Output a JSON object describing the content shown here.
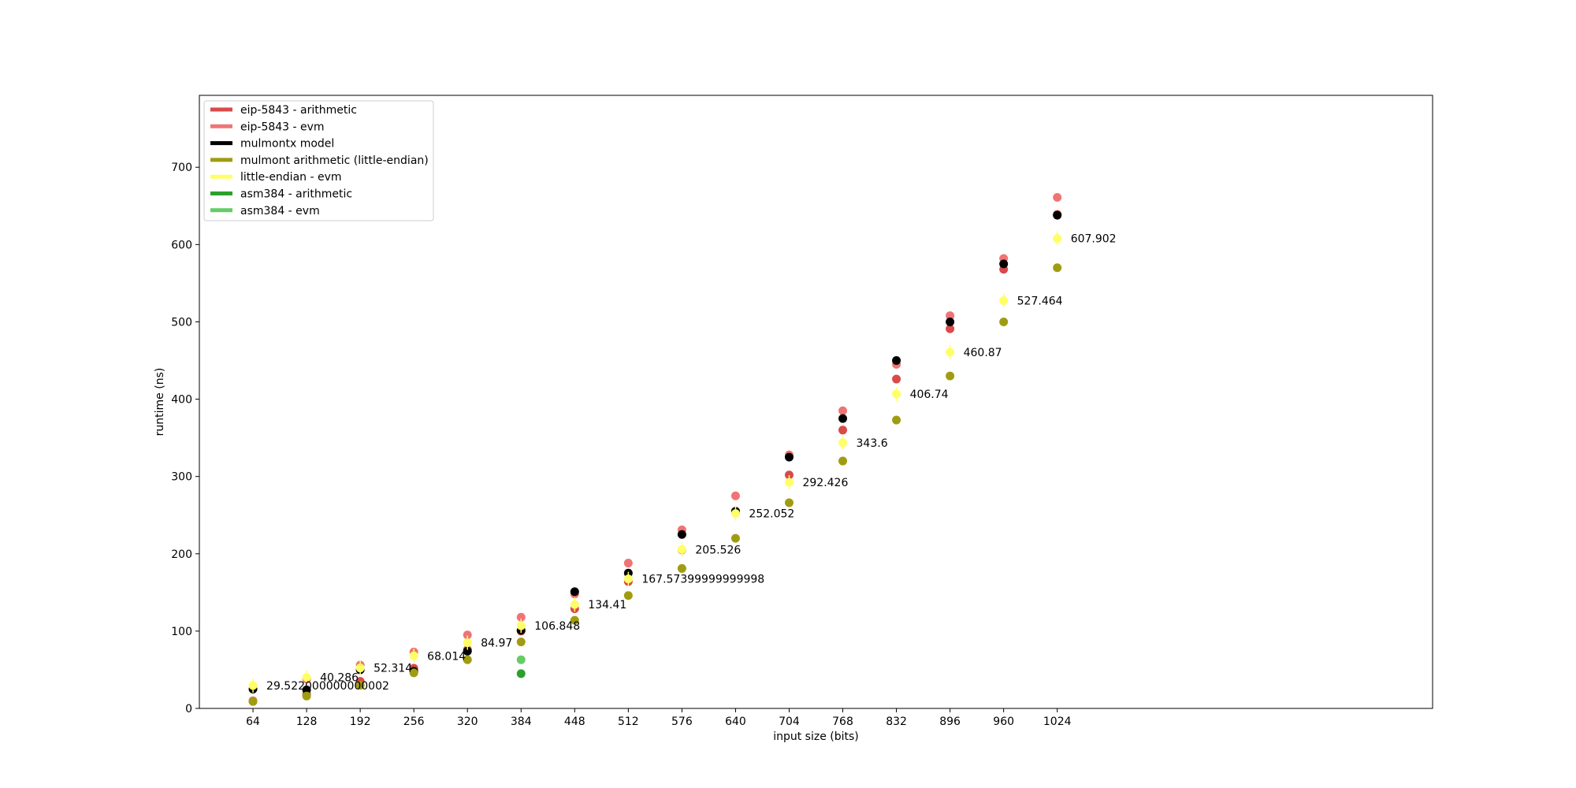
{
  "chart_data": {
    "type": "scatter",
    "title": "",
    "xlabel": "input size (bits)",
    "ylabel": "runtime (ns)",
    "xlim": [
      0,
      1472
    ],
    "ylim": [
      0,
      793
    ],
    "xticks": [
      64,
      128,
      192,
      256,
      320,
      384,
      448,
      512,
      576,
      640,
      704,
      768,
      832,
      896,
      960,
      1024
    ],
    "yticks": [
      0,
      100,
      200,
      300,
      400,
      500,
      600,
      700
    ],
    "legend_position": "top-left",
    "series": [
      {
        "name": "eip-5843 - arithmetic",
        "color": "#d94a4a",
        "x": [
          64,
          128,
          192,
          256,
          320,
          384,
          448,
          512,
          576,
          640,
          704,
          768,
          832,
          896,
          960,
          1024
        ],
        "y": [
          9,
          18,
          35,
          52,
          76,
          100,
          129,
          164,
          205,
          255,
          302,
          360,
          426,
          491,
          568,
          639
        ]
      },
      {
        "name": "eip-5843 - evm",
        "color": "#f07474",
        "x": [
          64,
          128,
          192,
          256,
          320,
          384,
          448,
          512,
          576,
          640,
          704,
          768,
          832,
          896,
          960,
          1024
        ],
        "y": [
          10,
          38,
          56,
          73,
          95,
          118,
          148,
          188,
          231,
          275,
          328,
          385,
          445,
          508,
          582,
          661
        ]
      },
      {
        "name": "mulmontx model",
        "color": "#000000",
        "x": [
          64,
          128,
          192,
          256,
          320,
          384,
          448,
          512,
          576,
          640,
          704,
          768,
          832,
          896,
          960,
          1024
        ],
        "y": [
          25,
          24,
          50,
          48,
          74,
          101,
          151,
          175,
          225,
          255,
          325,
          375,
          450,
          500,
          575,
          638
        ]
      },
      {
        "name": "mulmont arithmetic (little-endian)",
        "color": "#a09c12",
        "x": [
          64,
          128,
          192,
          256,
          320,
          384,
          448,
          512,
          576,
          640,
          704,
          768,
          832,
          896,
          960,
          1024
        ],
        "y": [
          9,
          16,
          30,
          46,
          63,
          86,
          114,
          146,
          181,
          220,
          266,
          320,
          373,
          430,
          500,
          570
        ]
      },
      {
        "name": "little-endian - evm",
        "color": "#ffff66",
        "x": [
          64,
          128,
          192,
          256,
          320,
          384,
          448,
          512,
          576,
          640,
          704,
          768,
          832,
          896,
          960,
          1024
        ],
        "y": [
          29.522000000000002,
          40.286,
          52.314,
          68.014,
          84.97,
          106.848,
          134.41,
          167.57399999999998,
          205.526,
          252.052,
          292.426,
          343.6,
          406.74,
          460.87,
          527.464,
          607.902
        ]
      },
      {
        "name": "asm384 - arithmetic",
        "color": "#2ca02c",
        "x": [
          384
        ],
        "y": [
          45
        ]
      },
      {
        "name": "asm384 - evm",
        "color": "#66cc66",
        "x": [
          384
        ],
        "y": [
          63
        ]
      }
    ],
    "annotations": [
      {
        "x": 64,
        "y": 29.522000000000002,
        "text": "29.522000000000002"
      },
      {
        "x": 128,
        "y": 40.286,
        "text": "40.286"
      },
      {
        "x": 192,
        "y": 52.314,
        "text": "52.314"
      },
      {
        "x": 256,
        "y": 68.014,
        "text": "68.014"
      },
      {
        "x": 320,
        "y": 84.97,
        "text": "84.97"
      },
      {
        "x": 384,
        "y": 106.848,
        "text": "106.848"
      },
      {
        "x": 448,
        "y": 134.41,
        "text": "134.41"
      },
      {
        "x": 512,
        "y": 167.57399999999998,
        "text": "167.57399999999998"
      },
      {
        "x": 576,
        "y": 205.526,
        "text": "205.526"
      },
      {
        "x": 640,
        "y": 252.052,
        "text": "252.052"
      },
      {
        "x": 704,
        "y": 292.426,
        "text": "292.426"
      },
      {
        "x": 768,
        "y": 343.6,
        "text": "343.6"
      },
      {
        "x": 832,
        "y": 406.74,
        "text": "406.74"
      },
      {
        "x": 896,
        "y": 460.87,
        "text": "460.87"
      },
      {
        "x": 960,
        "y": 527.464,
        "text": "527.464"
      },
      {
        "x": 1024,
        "y": 607.902,
        "text": "607.902"
      }
    ]
  }
}
